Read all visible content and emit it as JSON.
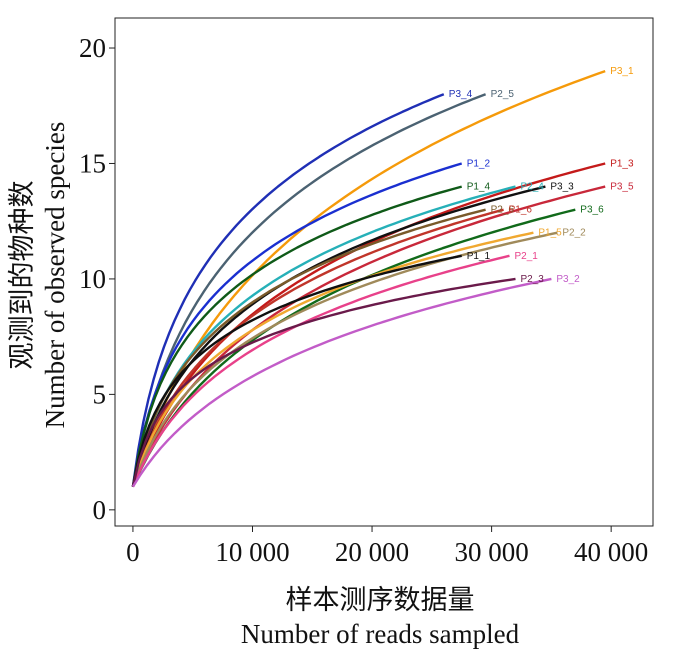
{
  "chart_data": {
    "type": "line",
    "xlabel_cn": "样本测序数据量",
    "xlabel": "Number of reads sampled",
    "ylabel_cn": "观测到的物种数",
    "ylabel": "Number of observed species",
    "xlim": [
      -1500,
      43500
    ],
    "ylim": [
      -0.7,
      21.3
    ],
    "x_ticks": [
      0,
      10000,
      20000,
      30000,
      40000
    ],
    "x_tick_labels": [
      "0",
      "10 000",
      "20 000",
      "30 000",
      "40 000"
    ],
    "y_ticks": [
      0,
      5,
      10,
      15,
      20
    ],
    "y_tick_labels": [
      "0",
      "5",
      "10",
      "15",
      "20"
    ],
    "grid": false,
    "series": [
      {
        "name": "P3_1",
        "color": "#f59a0a",
        "start": 1,
        "end": 19,
        "xmax": 39500,
        "k": 0.7
      },
      {
        "name": "P3_4",
        "color": "#1f2fb5",
        "start": 1,
        "end": 18,
        "xmax": 26000,
        "k": 1.6
      },
      {
        "name": "P2_5",
        "color": "#4b6272",
        "start": 1,
        "end": 18,
        "xmax": 29500,
        "k": 1.2
      },
      {
        "name": "P1_2",
        "color": "#1a2fd0",
        "start": 1,
        "end": 15,
        "xmax": 27500,
        "k": 1.8
      },
      {
        "name": "P1_3",
        "color": "#c41a1a",
        "start": 1,
        "end": 15,
        "xmax": 39500,
        "k": 0.9
      },
      {
        "name": "P3_5",
        "color": "#c8283a",
        "start": 1,
        "end": 14,
        "xmax": 39500,
        "k": 0.8
      },
      {
        "name": "P1_4",
        "color": "#0f5a18",
        "start": 1,
        "end": 14,
        "xmax": 27500,
        "k": 2.0
      },
      {
        "name": "P2_4",
        "color": "#26b0b8",
        "start": 1,
        "end": 14,
        "xmax": 32000,
        "k": 1.4
      },
      {
        "name": "P3_3",
        "color": "#111111",
        "start": 1,
        "end": 14,
        "xmax": 34500,
        "k": 1.3
      },
      {
        "name": "P3_6",
        "color": "#116a1a",
        "start": 1,
        "end": 13,
        "xmax": 37000,
        "k": 0.7
      },
      {
        "name": "P2_6",
        "color": "#7a5a2a",
        "start": 1,
        "end": 13,
        "xmax": 29500,
        "k": 1.5
      },
      {
        "name": "P1_6",
        "color": "#c0352a",
        "start": 1,
        "end": 13,
        "xmax": 31000,
        "k": 1.0
      },
      {
        "name": "P1_5",
        "color": "#f0a830",
        "start": 1,
        "end": 12,
        "xmax": 33500,
        "k": 1.3
      },
      {
        "name": "P2_2",
        "color": "#a08a5a",
        "start": 1,
        "end": 12,
        "xmax": 35500,
        "k": 1.1
      },
      {
        "name": "P1_1",
        "color": "#101010",
        "start": 1,
        "end": 11,
        "xmax": 27500,
        "k": 2.5
      },
      {
        "name": "P2_1",
        "color": "#e8418a",
        "start": 1,
        "end": 11,
        "xmax": 31500,
        "k": 0.8
      },
      {
        "name": "P2_3",
        "color": "#6a1a4a",
        "start": 1,
        "end": 10,
        "xmax": 32000,
        "k": 3.0
      },
      {
        "name": "P3_2",
        "color": "#c25cc8",
        "start": 1,
        "end": 10,
        "xmax": 35000,
        "k": 0.6
      }
    ]
  }
}
